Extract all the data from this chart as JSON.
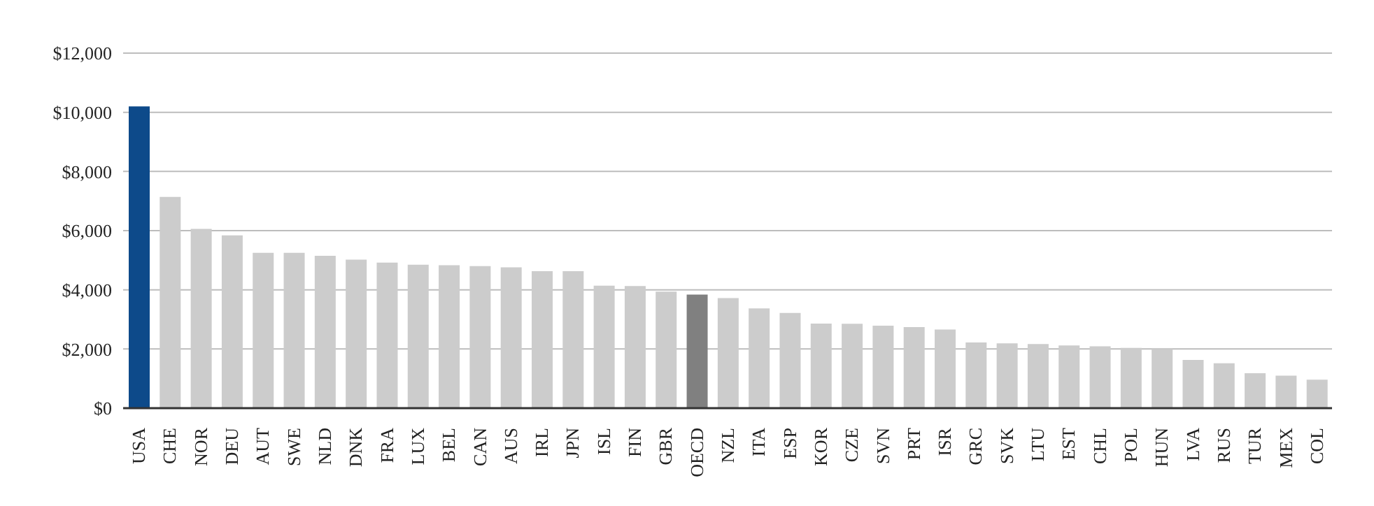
{
  "chart_data": {
    "type": "bar",
    "categories": [
      "USA",
      "CHE",
      "NOR",
      "DEU",
      "AUT",
      "SWE",
      "NLD",
      "DNK",
      "FRA",
      "LUX",
      "BEL",
      "CAN",
      "AUS",
      "IRL",
      "JPN",
      "ISL",
      "FIN",
      "GBR",
      "OECD",
      "NZL",
      "ITA",
      "ESP",
      "KOR",
      "CZE",
      "SVN",
      "PRT",
      "ISR",
      "GRC",
      "SVK",
      "LTU",
      "EST",
      "CHL",
      "POL",
      "HUN",
      "LVA",
      "RUS",
      "TUR",
      "MEX",
      "COL"
    ],
    "values": [
      10200,
      7140,
      6060,
      5840,
      5250,
      5250,
      5150,
      5020,
      4920,
      4850,
      4830,
      4800,
      4760,
      4630,
      4630,
      4140,
      4130,
      3940,
      3840,
      3720,
      3370,
      3220,
      2860,
      2850,
      2790,
      2740,
      2660,
      2220,
      2190,
      2170,
      2120,
      2090,
      2040,
      2000,
      1630,
      1520,
      1180,
      1100,
      960
    ],
    "colors": [
      "#0d4a8a",
      "#cccccc",
      "#cccccc",
      "#cccccc",
      "#cccccc",
      "#cccccc",
      "#cccccc",
      "#cccccc",
      "#cccccc",
      "#cccccc",
      "#cccccc",
      "#cccccc",
      "#cccccc",
      "#cccccc",
      "#cccccc",
      "#cccccc",
      "#cccccc",
      "#cccccc",
      "#808080",
      "#cccccc",
      "#cccccc",
      "#cccccc",
      "#cccccc",
      "#cccccc",
      "#cccccc",
      "#cccccc",
      "#cccccc",
      "#cccccc",
      "#cccccc",
      "#cccccc",
      "#cccccc",
      "#cccccc",
      "#cccccc",
      "#cccccc",
      "#cccccc",
      "#cccccc",
      "#cccccc",
      "#cccccc",
      "#cccccc"
    ],
    "ylim": [
      0,
      12000
    ],
    "yticks": [
      {
        "value": 0,
        "label": "$0"
      },
      {
        "value": 2000,
        "label": "$2,000"
      },
      {
        "value": 4000,
        "label": "$4,000"
      },
      {
        "value": 6000,
        "label": "$6,000"
      },
      {
        "value": 8000,
        "label": "$8,000"
      },
      {
        "value": 10000,
        "label": "$10,000"
      },
      {
        "value": 12000,
        "label": "$12,000"
      }
    ],
    "grid": "y"
  }
}
